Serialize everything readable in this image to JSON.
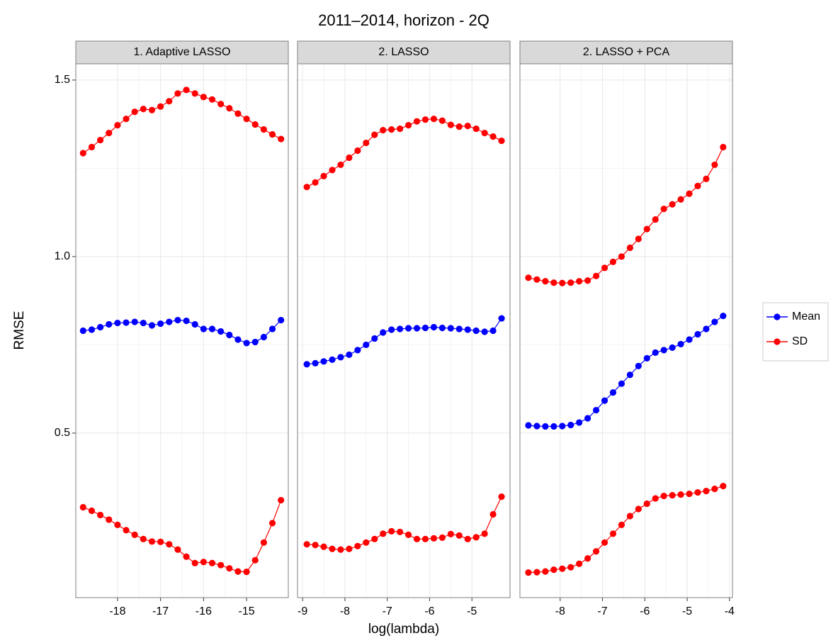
{
  "title": "2011–2014, horizon - 2Q",
  "xlabel": "log(lambda)",
  "ylabel": "RMSE",
  "legend": [
    {
      "name": "Mean",
      "color": "#0000ff"
    },
    {
      "name": "SD",
      "color": "#ff0000"
    }
  ],
  "chart_data": [
    {
      "type": "line",
      "strip": "1. Adaptive LASSO",
      "xlim": [
        -18.97,
        -14.03
      ],
      "xticks": [
        -18,
        -17,
        -16,
        -15
      ],
      "ylim": [
        0.034,
        1.546
      ],
      "yticks": [
        1.5,
        {
          "value": 1,
          "label": "1.0"
        },
        0.5
      ],
      "grid": true,
      "x": [
        -18.8,
        -18.6,
        -18.4,
        -18.2,
        -18.0,
        -17.8,
        -17.6,
        -17.4,
        -17.2,
        -17.0,
        -16.8,
        -16.6,
        -16.4,
        -16.2,
        -16.0,
        -15.8,
        -15.6,
        -15.4,
        -15.2,
        -15.0,
        -14.8,
        -14.6,
        -14.4,
        -14.2
      ],
      "series": [
        {
          "color": "#ff0000",
          "values": [
            1.293,
            1.31,
            1.33,
            1.35,
            1.372,
            1.39,
            1.41,
            1.418,
            1.415,
            1.425,
            1.44,
            1.462,
            1.472,
            1.462,
            1.452,
            1.445,
            1.432,
            1.42,
            1.405,
            1.39,
            1.374,
            1.36,
            1.346,
            1.333
          ]
        },
        {
          "color": "#0000ff",
          "values": [
            0.79,
            0.793,
            0.8,
            0.808,
            0.812,
            0.813,
            0.815,
            0.812,
            0.805,
            0.81,
            0.815,
            0.82,
            0.818,
            0.808,
            0.795,
            0.795,
            0.788,
            0.778,
            0.765,
            0.755,
            0.758,
            0.772,
            0.795,
            0.82
          ]
        },
        {
          "color": "#ff0000",
          "values": [
            0.29,
            0.28,
            0.268,
            0.255,
            0.24,
            0.225,
            0.212,
            0.2,
            0.193,
            0.192,
            0.185,
            0.17,
            0.15,
            0.132,
            0.135,
            0.132,
            0.126,
            0.117,
            0.108,
            0.107,
            0.14,
            0.19,
            0.245,
            0.31
          ]
        }
      ]
    },
    {
      "type": "line",
      "strip": "2. LASSO",
      "xlim": [
        -9.12,
        -4.1
      ],
      "xticks": [
        -9,
        -8,
        -7,
        -6,
        -5
      ],
      "ylim": [
        0.034,
        1.546
      ],
      "yticks": [
        1.5,
        {
          "value": 1,
          "label": "1.0"
        },
        0.5
      ],
      "grid": true,
      "x": [
        -8.9,
        -8.7,
        -8.5,
        -8.3,
        -8.1,
        -7.9,
        -7.7,
        -7.5,
        -7.3,
        -7.1,
        -6.9,
        -6.7,
        -6.5,
        -6.3,
        -6.1,
        -5.9,
        -5.7,
        -5.5,
        -5.3,
        -5.1,
        -4.9,
        -4.7,
        -4.5,
        -4.3
      ],
      "series": [
        {
          "color": "#ff0000",
          "values": [
            1.197,
            1.21,
            1.228,
            1.245,
            1.26,
            1.28,
            1.3,
            1.322,
            1.345,
            1.358,
            1.36,
            1.362,
            1.372,
            1.383,
            1.388,
            1.39,
            1.385,
            1.373,
            1.368,
            1.37,
            1.362,
            1.35,
            1.34,
            1.328
          ]
        },
        {
          "color": "#0000ff",
          "values": [
            0.695,
            0.698,
            0.703,
            0.708,
            0.715,
            0.722,
            0.735,
            0.75,
            0.768,
            0.785,
            0.793,
            0.795,
            0.797,
            0.797,
            0.798,
            0.8,
            0.798,
            0.797,
            0.795,
            0.793,
            0.79,
            0.787,
            0.79,
            0.825
          ]
        },
        {
          "color": "#ff0000",
          "values": [
            0.185,
            0.183,
            0.178,
            0.172,
            0.17,
            0.172,
            0.18,
            0.19,
            0.2,
            0.215,
            0.222,
            0.22,
            0.212,
            0.2,
            0.2,
            0.202,
            0.204,
            0.214,
            0.21,
            0.2,
            0.205,
            0.215,
            0.27,
            0.32
          ]
        }
      ]
    },
    {
      "type": "line",
      "strip": "2. LASSO + PCA",
      "xlim": [
        -8.95,
        -3.93
      ],
      "xticks": [
        -8,
        -7,
        -6,
        -5,
        -4
      ],
      "ylim": [
        0.034,
        1.546
      ],
      "yticks": [
        1.5,
        {
          "value": 1,
          "label": "1.0"
        },
        0.5
      ],
      "grid": true,
      "x": [
        -8.75,
        -8.55,
        -8.35,
        -8.15,
        -7.95,
        -7.75,
        -7.55,
        -7.35,
        -7.15,
        -6.95,
        -6.75,
        -6.55,
        -6.35,
        -6.15,
        -5.95,
        -5.75,
        -5.55,
        -5.35,
        -5.15,
        -4.95,
        -4.75,
        -4.55,
        -4.35,
        -4.15
      ],
      "series": [
        {
          "color": "#ff0000",
          "values": [
            0.94,
            0.935,
            0.93,
            0.926,
            0.925,
            0.926,
            0.93,
            0.932,
            0.945,
            0.968,
            0.985,
            1.0,
            1.025,
            1.05,
            1.078,
            1.105,
            1.135,
            1.148,
            1.162,
            1.178,
            1.2,
            1.22,
            1.26,
            1.31
          ]
        },
        {
          "color": "#0000ff",
          "values": [
            0.522,
            0.52,
            0.519,
            0.519,
            0.52,
            0.523,
            0.53,
            0.542,
            0.565,
            0.592,
            0.615,
            0.64,
            0.665,
            0.69,
            0.712,
            0.728,
            0.735,
            0.742,
            0.752,
            0.765,
            0.78,
            0.795,
            0.815,
            0.832
          ]
        },
        {
          "color": "#ff0000",
          "values": [
            0.105,
            0.106,
            0.108,
            0.113,
            0.116,
            0.12,
            0.13,
            0.145,
            0.165,
            0.19,
            0.215,
            0.24,
            0.265,
            0.285,
            0.3,
            0.315,
            0.322,
            0.324,
            0.326,
            0.328,
            0.332,
            0.336,
            0.342,
            0.35
          ]
        }
      ]
    }
  ]
}
